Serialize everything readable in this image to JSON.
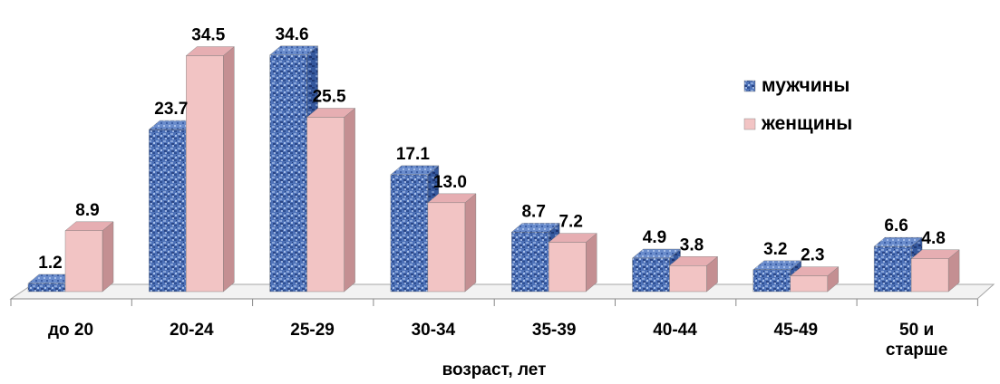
{
  "chart_data": {
    "type": "bar",
    "title": "",
    "xlabel": "возраст, лет",
    "ylabel": "",
    "categories": [
      "до 20",
      "20-24",
      "25-29",
      "30-34",
      "35-39",
      "40-44",
      "45-49",
      "50 и старше"
    ],
    "category_lines": [
      [
        "до 20"
      ],
      [
        "20-24"
      ],
      [
        "25-29"
      ],
      [
        "30-34"
      ],
      [
        "35-39"
      ],
      [
        "40-44"
      ],
      [
        "45-49"
      ],
      [
        "50 и",
        "старше"
      ]
    ],
    "series": [
      {
        "name": "мужчины",
        "values": [
          1.2,
          23.7,
          34.6,
          17.1,
          8.7,
          4.9,
          3.2,
          6.6
        ],
        "labels": [
          "1.2",
          "23.7",
          "34.6",
          "17.1",
          "8.7",
          "4.9",
          "3.2",
          "6.6"
        ],
        "color": "#4a6fb5",
        "pattern": "blue-texture"
      },
      {
        "name": "женщины",
        "values": [
          8.9,
          34.5,
          25.5,
          13.0,
          7.2,
          3.8,
          2.3,
          4.8
        ],
        "labels": [
          "8.9",
          "34.5",
          "25.5",
          "13.0",
          "7.2",
          "3.8",
          "2.3",
          "4.8"
        ],
        "color": "#f2c4c4",
        "pattern": "pink-solid"
      }
    ],
    "ylim": [
      0,
      36
    ],
    "grid": false,
    "legend_position": "right",
    "three_d": true
  }
}
